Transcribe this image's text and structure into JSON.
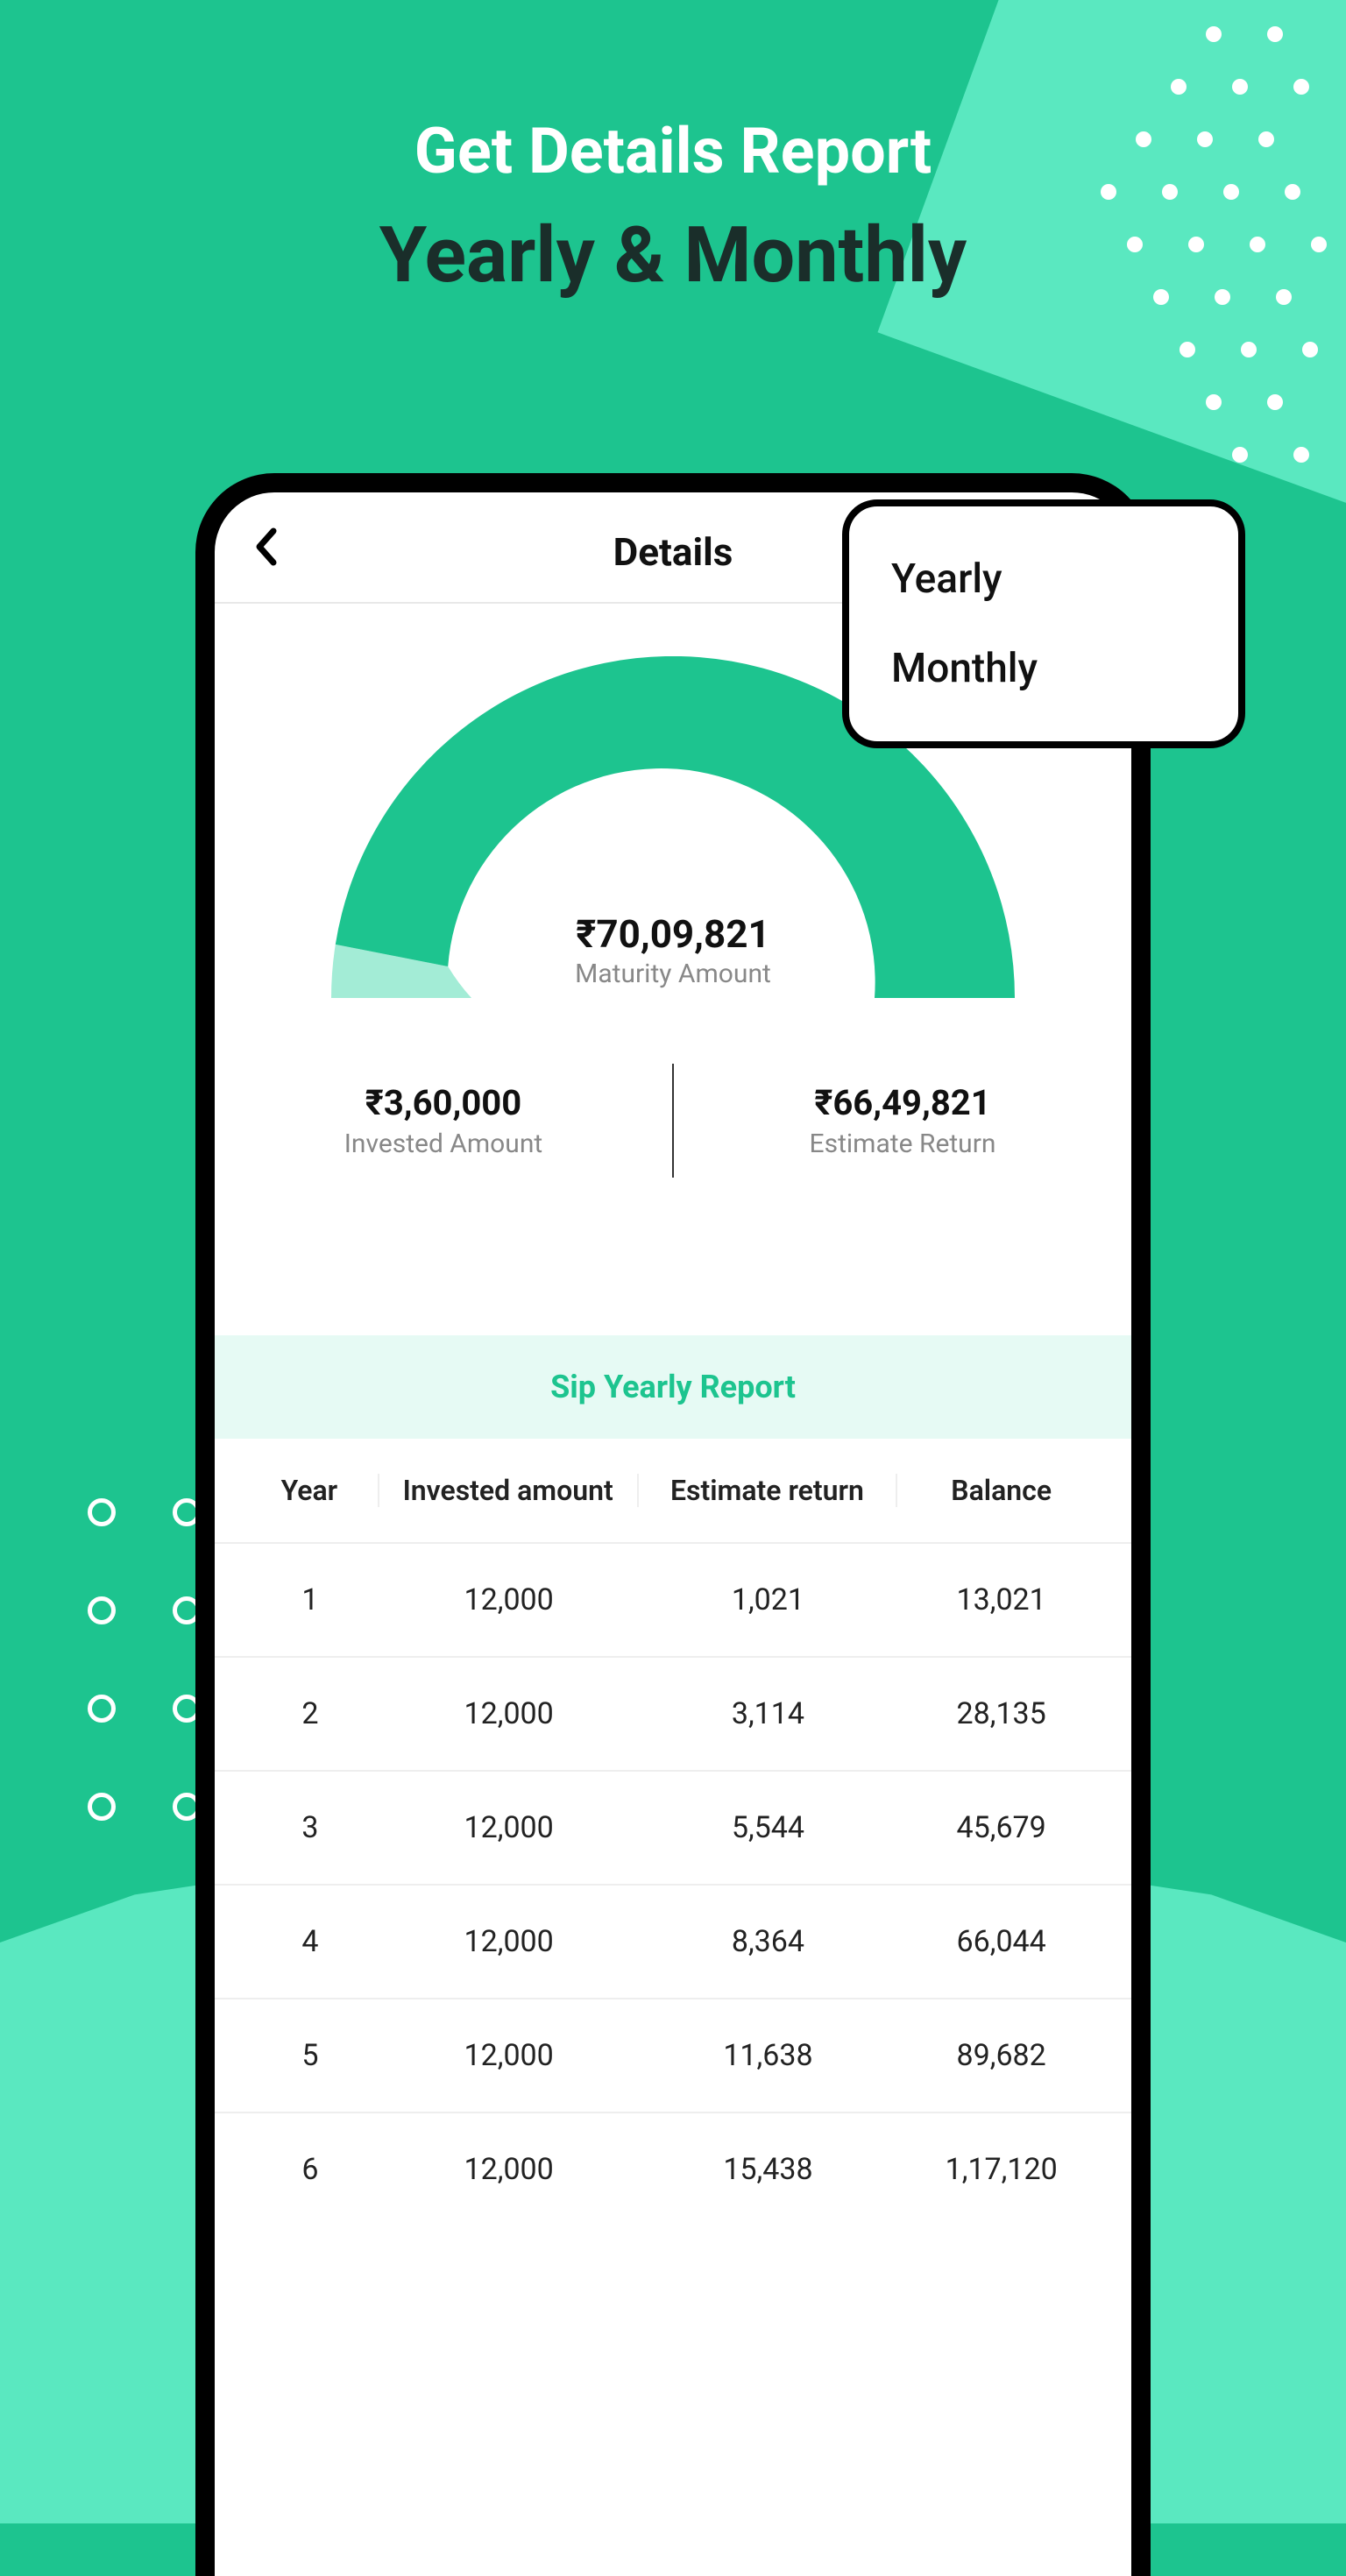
{
  "header": {
    "line1": "Get Details Report",
    "line2": "Yearly & Monthly"
  },
  "app": {
    "title": "Details"
  },
  "dropdown": {
    "options": [
      "Yearly",
      "Monthly"
    ]
  },
  "gauge": {
    "type": "semi-donut",
    "maturity_amount": "₹70,09,821",
    "maturity_label": "Maturity Amount",
    "primary_color": "#1dc48f",
    "secondary_color": "#a3ecd6",
    "background_color": "#ffffff",
    "invested_ratio": 0.05,
    "outer_radius": 390,
    "inner_radius": 230
  },
  "stats": {
    "invested_value": "₹3,60,000",
    "invested_label": "Invested Amount",
    "return_value": "₹66,49,821",
    "return_label": "Estimate Return"
  },
  "report": {
    "title": "Sip Yearly Report",
    "header_bg": "#e6faf4",
    "header_color": "#1dc48f",
    "columns": [
      "Year",
      "Invested amount",
      "Estimate return",
      "Balance"
    ],
    "rows": [
      [
        "1",
        "12,000",
        "1,021",
        "13,021"
      ],
      [
        "2",
        "12,000",
        "3,114",
        "28,135"
      ],
      [
        "3",
        "12,000",
        "5,544",
        "45,679"
      ],
      [
        "4",
        "12,000",
        "8,364",
        "66,044"
      ],
      [
        "5",
        "12,000",
        "11,638",
        "89,682"
      ],
      [
        "6",
        "12,000",
        "15,438",
        "1,17,120"
      ]
    ]
  },
  "colors": {
    "bg_primary": "#1dc48f",
    "bg_secondary": "#5ae8c0",
    "text_dark": "#1a2e2a",
    "text_muted": "#888888",
    "border_light": "#eeeeee"
  }
}
